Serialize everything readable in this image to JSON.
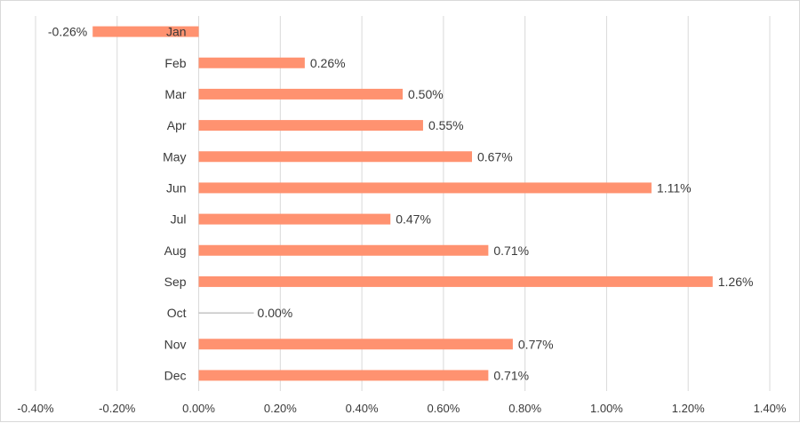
{
  "chart_data": {
    "type": "bar",
    "orientation": "horizontal",
    "title": "",
    "xlabel": "",
    "ylabel": "",
    "categories": [
      "Jan",
      "Feb",
      "Mar",
      "Apr",
      "May",
      "Jun",
      "Jul",
      "Aug",
      "Sep",
      "Oct",
      "Nov",
      "Dec"
    ],
    "values": [
      -0.26,
      0.26,
      0.5,
      0.55,
      0.67,
      1.11,
      0.47,
      0.71,
      1.26,
      0.0,
      0.77,
      0.71
    ],
    "data_labels": [
      "-0.26%",
      "0.26%",
      "0.50%",
      "0.55%",
      "0.67%",
      "1.11%",
      "0.47%",
      "0.71%",
      "1.26%",
      "0.00%",
      "0.77%",
      "0.71%"
    ],
    "xlim": [
      -0.4,
      1.4
    ],
    "xticks": [
      "-0.40%",
      "-0.20%",
      "0.00%",
      "0.20%",
      "0.40%",
      "0.60%",
      "0.80%",
      "1.00%",
      "1.20%",
      "1.40%"
    ],
    "grid": true,
    "legend": "none",
    "colors": {
      "bar": "#ff9270",
      "grid": "#d9d9d9",
      "text": "#3a3a3a",
      "zero_line": "#a6a6a6"
    }
  }
}
